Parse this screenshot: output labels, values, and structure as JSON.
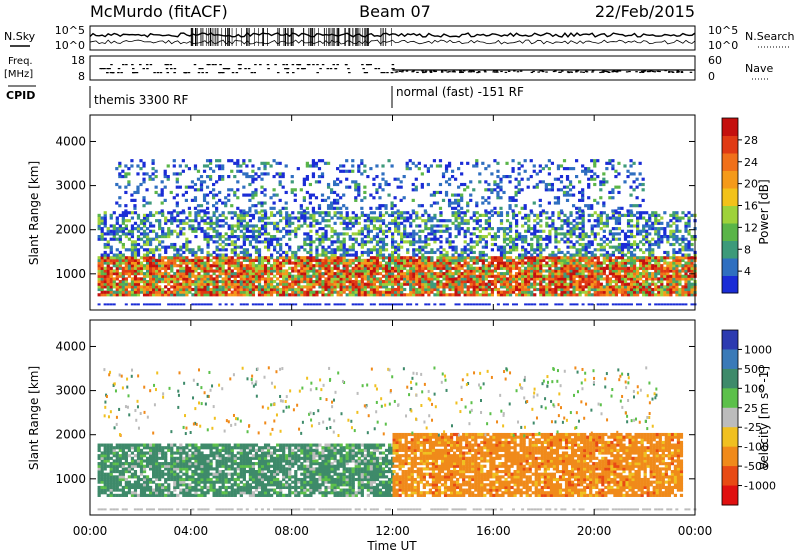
{
  "header": {
    "station": "McMurdo (fitACF)",
    "beam": "Beam 07",
    "date": "22/Feb/2015"
  },
  "top_panels": {
    "nsky_label": "N.Sky",
    "nsky_ticks": [
      "10^5",
      "10^0"
    ],
    "nsearch_label": "N.Search",
    "nsearch_ticks": [
      "10^5",
      "10^0"
    ],
    "freq_label": "Freq.",
    "freq_unit": "[MHz]",
    "freq_ticks": [
      "18",
      "8"
    ],
    "nave_label": "Nave",
    "nave_ticks": [
      "60",
      "0"
    ],
    "cpid_label": "CPID",
    "cpid_segments": [
      {
        "label": "themis 3300 RF",
        "start_hour": 0
      },
      {
        "label": "normal (fast) -151 RF",
        "start_hour": 12
      }
    ]
  },
  "x_axis": {
    "label": "Time UT",
    "ticks": [
      "00:00",
      "04:00",
      "08:00",
      "12:00",
      "16:00",
      "20:00",
      "00:00"
    ],
    "range_hours": [
      0,
      24
    ]
  },
  "chart_data": [
    {
      "type": "heatmap",
      "name": "power",
      "ylabel": "Slant Range [km]",
      "yticks": [
        1000,
        2000,
        3000,
        4000
      ],
      "ylim": [
        180,
        4600
      ],
      "xlim": [
        0,
        24
      ],
      "colorbar": {
        "label": "Power [dB]",
        "ticks": [
          "4",
          "8",
          "12",
          "16",
          "20",
          "24",
          "28"
        ],
        "range": [
          0,
          32
        ],
        "colors": [
          "#1a2cd6",
          "#2f6fc0",
          "#3d9a7a",
          "#5ab548",
          "#9ed23a",
          "#f2c21a",
          "#f59a1a",
          "#f0701a",
          "#e03a14",
          "#c4100e"
        ]
      },
      "bands": [
        {
          "from_hour": 0.3,
          "to_hour": 24,
          "range_low": 500,
          "range_high": 1400,
          "level": "strong"
        },
        {
          "from_hour": 0.3,
          "to_hour": 24,
          "range_low": 1400,
          "range_high": 2400,
          "level": "medium"
        },
        {
          "from_hour": 1.0,
          "to_hour": 22,
          "range_low": 2400,
          "range_high": 3550,
          "level": "weak"
        }
      ]
    },
    {
      "type": "heatmap",
      "name": "velocity",
      "ylabel": "Slant Range [km]",
      "yticks": [
        1000,
        2000,
        3000,
        4000
      ],
      "ylim": [
        180,
        4600
      ],
      "xlim": [
        0,
        24
      ],
      "colorbar": {
        "label": "Velocity [m s^-1]",
        "ticks": [
          "1000",
          "500",
          "100",
          "25",
          "-25",
          "-100",
          "-500",
          "-1000"
        ],
        "colors": [
          "#2c3ab0",
          "#3a7ab8",
          "#3e8a6a",
          "#5cc04a",
          "#bcbcbc",
          "#f0c020",
          "#f08a1a",
          "#e84a14",
          "#e01010"
        ]
      },
      "bands": [
        {
          "from_hour": 0.3,
          "to_hour": 12,
          "range_low": 600,
          "range_high": 1800,
          "sign": "positive"
        },
        {
          "from_hour": 12,
          "to_hour": 23.5,
          "range_low": 600,
          "range_high": 2000,
          "sign": "negative"
        }
      ]
    }
  ]
}
